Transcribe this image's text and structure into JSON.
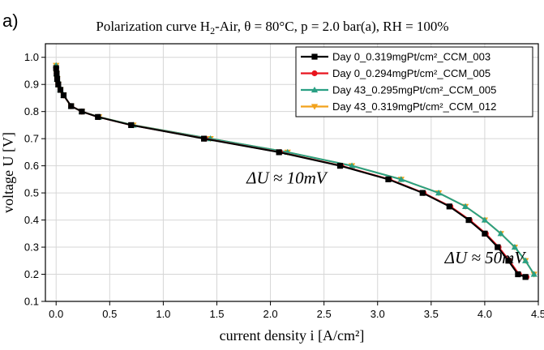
{
  "panel_label": "a)",
  "chart_data": {
    "type": "line",
    "title_parts": {
      "pre": "Polarization curve H",
      "sub": "2",
      "post": "-Air, θ = 80°C, p = 2.0 bar(a), RH = 100%"
    },
    "xlabel": "current density i [A/cm²]",
    "ylabel": "voltage U [V]",
    "xlim": [
      -0.1,
      4.5
    ],
    "ylim": [
      0.1,
      1.05
    ],
    "xticks": [
      0.0,
      0.5,
      1.0,
      1.5,
      2.0,
      2.5,
      3.0,
      3.5,
      4.0,
      4.5
    ],
    "xtick_labels": [
      "0.0",
      "0.5",
      "1.0",
      "1.5",
      "2.0",
      "2.5",
      "3.0",
      "3.5",
      "4.0",
      "4.5"
    ],
    "yticks": [
      0.1,
      0.2,
      0.3,
      0.4,
      0.5,
      0.6,
      0.7,
      0.8,
      0.9,
      1.0
    ],
    "ytick_labels": [
      "0.1",
      "0.2",
      "0.3",
      "0.4",
      "0.5",
      "0.6",
      "0.7",
      "0.8",
      "0.9",
      "1.0"
    ],
    "grid": true,
    "legend_position": "top-right",
    "series": [
      {
        "name": "Day 0_0.319mgPt/cm²_CCM_003",
        "color": "#000000",
        "marker": "square",
        "x": [
          0.0,
          0.005,
          0.01,
          0.02,
          0.04,
          0.07,
          0.14,
          0.24,
          0.39,
          0.7,
          1.38,
          2.08,
          2.65,
          3.1,
          3.42,
          3.67,
          3.85,
          4.0,
          4.12,
          4.22,
          4.31,
          4.38
        ],
        "y": [
          0.96,
          0.94,
          0.92,
          0.9,
          0.88,
          0.86,
          0.82,
          0.8,
          0.78,
          0.75,
          0.7,
          0.65,
          0.6,
          0.55,
          0.5,
          0.45,
          0.4,
          0.35,
          0.3,
          0.25,
          0.2,
          0.19
        ]
      },
      {
        "name": "Day 0_0.294mgPt/cm²_CCM_005",
        "color": "#e8141e",
        "marker": "circle",
        "x": [
          0.0,
          0.005,
          0.01,
          0.02,
          0.04,
          0.07,
          0.14,
          0.24,
          0.39,
          0.7,
          1.39,
          2.09,
          2.66,
          3.11,
          3.43,
          3.68,
          3.86,
          4.01,
          4.13,
          4.23,
          4.32,
          4.39
        ],
        "y": [
          0.96,
          0.94,
          0.92,
          0.9,
          0.88,
          0.86,
          0.82,
          0.8,
          0.78,
          0.75,
          0.7,
          0.65,
          0.6,
          0.55,
          0.5,
          0.45,
          0.4,
          0.35,
          0.3,
          0.25,
          0.2,
          0.19
        ]
      },
      {
        "name": "Day 43_0.295mgPt/cm²_CCM_005",
        "color": "#2aa084",
        "marker": "triangle-up",
        "x": [
          0.0,
          0.005,
          0.01,
          0.02,
          0.04,
          0.07,
          0.14,
          0.24,
          0.4,
          0.72,
          1.44,
          2.16,
          2.76,
          3.22,
          3.57,
          3.82,
          4.0,
          4.15,
          4.28,
          4.38,
          4.46
        ],
        "y": [
          0.97,
          0.94,
          0.92,
          0.9,
          0.88,
          0.86,
          0.82,
          0.8,
          0.78,
          0.75,
          0.7,
          0.65,
          0.6,
          0.55,
          0.5,
          0.45,
          0.4,
          0.35,
          0.3,
          0.25,
          0.2
        ]
      },
      {
        "name": "Day 43_0.319mgPt/cm²_CCM_012",
        "color": "#f2a21b",
        "marker": "triangle-down",
        "x": [
          0.0,
          0.005,
          0.01,
          0.02,
          0.04,
          0.07,
          0.14,
          0.24,
          0.4,
          0.72,
          1.44,
          2.16,
          2.76,
          3.22,
          3.57,
          3.82,
          4.0,
          4.15,
          4.28,
          4.38,
          4.46
        ],
        "y": [
          0.97,
          0.94,
          0.92,
          0.9,
          0.88,
          0.86,
          0.82,
          0.8,
          0.78,
          0.75,
          0.7,
          0.65,
          0.6,
          0.55,
          0.5,
          0.45,
          0.4,
          0.35,
          0.3,
          0.25,
          0.2
        ]
      }
    ],
    "annotations": [
      {
        "text": "ΔU ≈ 10mV",
        "x": 2.15,
        "y": 0.535
      },
      {
        "text": "ΔU ≈ 50mV",
        "x": 4.0,
        "y": 0.24
      }
    ]
  }
}
